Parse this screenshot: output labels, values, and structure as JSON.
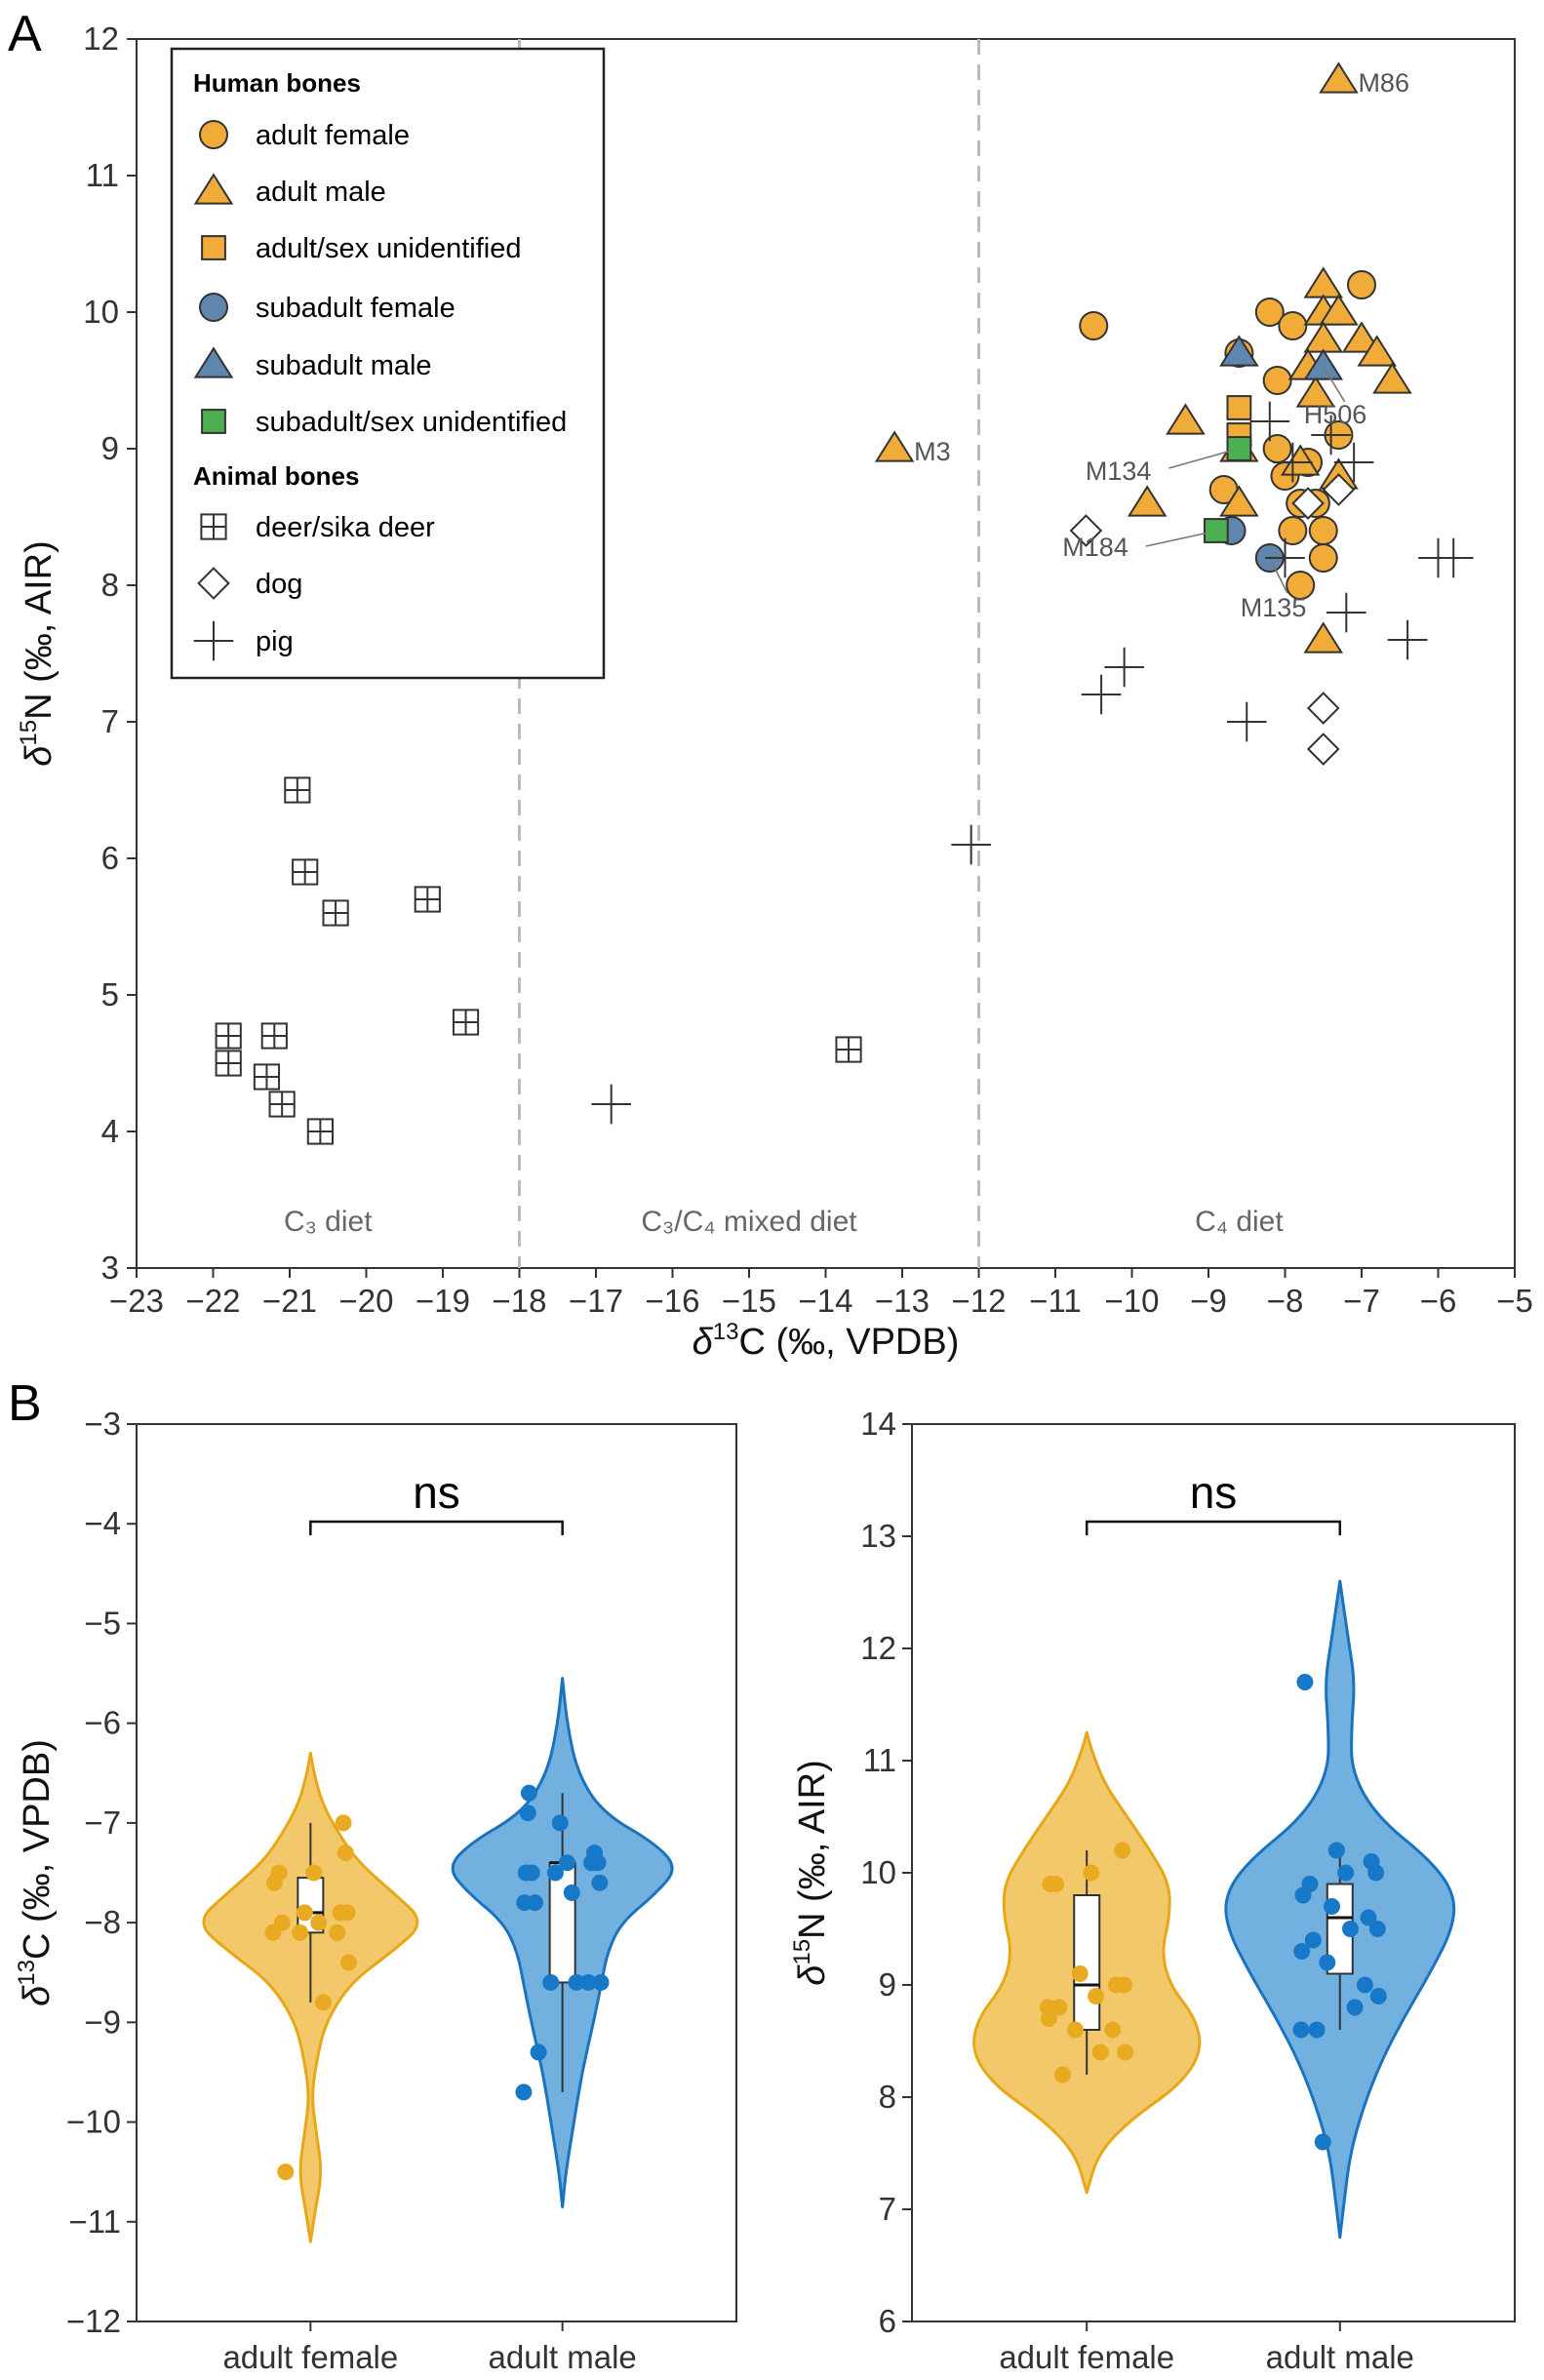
{
  "panels": {
    "a_letter": "A",
    "b_letter": "B"
  },
  "colors": {
    "orange": "#F0AB39",
    "steel_blue": "#5F86AD",
    "green": "#4CAF50",
    "violin_female": "#F2C86A",
    "violin_male": "#72B0E0",
    "line_female": "#E6A817",
    "line_male": "#1A73BF",
    "point_female": "#E8AA20",
    "point_male": "#1878C8"
  },
  "chart_data": [
    {
      "type": "scatter",
      "panel": "A",
      "xlabel": "δ13C (‰, VPDB)",
      "ylabel": "δ15N (‰, AIR)",
      "xlim": [
        -23,
        -5
      ],
      "ylim": [
        3,
        12
      ],
      "xticks": [
        -23,
        -22,
        -21,
        -20,
        -19,
        -18,
        -17,
        -16,
        -15,
        -14,
        -13,
        -12,
        -11,
        -10,
        -9,
        -8,
        -7,
        -6,
        -5
      ],
      "yticks": [
        3,
        4,
        5,
        6,
        7,
        8,
        9,
        10,
        11,
        12
      ],
      "xtick_labels": [
        "−23",
        "−22",
        "−21",
        "−20",
        "−19",
        "−18",
        "−17",
        "−16",
        "−15",
        "−14",
        "−13",
        "−12",
        "−11",
        "−10",
        "−9",
        "−8",
        "−7",
        "−6",
        "−5"
      ],
      "ytick_labels": [
        "3",
        "4",
        "5",
        "6",
        "7",
        "8",
        "9",
        "10",
        "11",
        "12"
      ],
      "vlines": [
        -18,
        -12
      ],
      "regions": [
        {
          "label": "C₃ diet",
          "x": -20.5
        },
        {
          "label": "C₃/C₄ mixed diet",
          "x": -15
        },
        {
          "label": "C₄ diet",
          "x": -8.6
        }
      ],
      "legend": {
        "position": "top-left",
        "human_title": "Human bones",
        "animal_title": "Animal bones",
        "entries": [
          {
            "label": "adult female",
            "marker": "circle",
            "color": "#F0AB39"
          },
          {
            "label": "adult male",
            "marker": "triangle",
            "color": "#F0AB39"
          },
          {
            "label": "adult/sex unidentified",
            "marker": "square",
            "color": "#F0AB39"
          },
          {
            "label": "subadult female",
            "marker": "circle",
            "color": "#5F86AD"
          },
          {
            "label": "subadult male",
            "marker": "triangle",
            "color": "#5F86AD"
          },
          {
            "label": "subadult/sex unidentified",
            "marker": "square",
            "color": "#4CAF50"
          },
          {
            "label": "deer/sika deer",
            "marker": "boxplus",
            "color": "none"
          },
          {
            "label": "dog",
            "marker": "diamond",
            "color": "none"
          },
          {
            "label": "pig",
            "marker": "plus",
            "color": "none"
          }
        ]
      },
      "series": [
        {
          "name": "adult female",
          "marker": "circle",
          "color": "#F0AB39",
          "points": [
            [
              -10.5,
              9.9
            ],
            [
              -8.6,
              9.7
            ],
            [
              -8.2,
              10.0
            ],
            [
              -7.9,
              9.9
            ],
            [
              -7,
              10.2
            ],
            [
              -8.1,
              9.5
            ],
            [
              -8.1,
              9.0
            ],
            [
              -8.0,
              8.8
            ],
            [
              -7.7,
              8.9
            ],
            [
              -7.3,
              9.1
            ],
            [
              -8.8,
              8.7
            ],
            [
              -7.8,
              8.6
            ],
            [
              -7.6,
              8.6
            ],
            [
              -7.9,
              8.4
            ],
            [
              -7.5,
              8.4
            ],
            [
              -7.5,
              8.2
            ],
            [
              -7.8,
              8.0
            ]
          ]
        },
        {
          "name": "adult male",
          "marker": "triangle",
          "color": "#F0AB39",
          "points": [
            [
              -7.3,
              11.7
            ],
            [
              -13.1,
              9.0
            ],
            [
              -9.3,
              9.2
            ],
            [
              -9.8,
              8.6
            ],
            [
              -8.6,
              8.6
            ],
            [
              -7.5,
              10.2
            ],
            [
              -7.5,
              10.0
            ],
            [
              -7.3,
              10.0
            ],
            [
              -7.5,
              9.8
            ],
            [
              -7.0,
              9.8
            ],
            [
              -6.8,
              9.7
            ],
            [
              -7.7,
              9.6
            ],
            [
              -6.6,
              9.5
            ],
            [
              -7.6,
              9.4
            ],
            [
              -8.6,
              9.0
            ],
            [
              -7.8,
              8.9
            ],
            [
              -7.3,
              8.8
            ],
            [
              -7.5,
              7.6
            ]
          ]
        },
        {
          "name": "adult/sex unidentified",
          "marker": "square",
          "color": "#F0AB39",
          "points": [
            [
              -8.6,
              9.3
            ],
            [
              -8.6,
              9.1
            ]
          ]
        },
        {
          "name": "subadult female",
          "marker": "circle",
          "color": "#5F86AD",
          "points": [
            [
              -8.2,
              8.2
            ],
            [
              -8.7,
              8.4
            ]
          ]
        },
        {
          "name": "subadult male",
          "marker": "triangle",
          "color": "#5F86AD",
          "points": [
            [
              -7.5,
              9.6
            ],
            [
              -8.6,
              9.7
            ]
          ]
        },
        {
          "name": "subadult/sex unidentified",
          "marker": "square",
          "color": "#4CAF50",
          "points": [
            [
              -8.6,
              9.0
            ],
            [
              -8.9,
              8.4
            ]
          ]
        },
        {
          "name": "deer/sika deer",
          "marker": "boxplus",
          "points": [
            [
              -20.9,
              6.5
            ],
            [
              -20.8,
              5.9
            ],
            [
              -20.4,
              5.6
            ],
            [
              -19.2,
              5.7
            ],
            [
              -18.7,
              4.8
            ],
            [
              -21.8,
              4.7
            ],
            [
              -21.2,
              4.7
            ],
            [
              -21.8,
              4.5
            ],
            [
              -21.3,
              4.4
            ],
            [
              -21.1,
              4.2
            ],
            [
              -20.6,
              4.0
            ],
            [
              -13.7,
              4.6
            ]
          ]
        },
        {
          "name": "dog",
          "marker": "diamond",
          "points": [
            [
              -10.6,
              8.4
            ],
            [
              -7.7,
              8.6
            ],
            [
              -7.3,
              8.7
            ],
            [
              -7.5,
              7.1
            ],
            [
              -7.5,
              6.8
            ]
          ]
        },
        {
          "name": "pig",
          "marker": "plus",
          "points": [
            [
              -16.8,
              4.2
            ],
            [
              -12.1,
              6.1
            ],
            [
              -10.4,
              7.2
            ],
            [
              -10.1,
              7.4
            ],
            [
              -8.5,
              7.0
            ],
            [
              -8.2,
              9.2
            ],
            [
              -7.9,
              8.9
            ],
            [
              -7.4,
              9.1
            ],
            [
              -7.1,
              8.9
            ],
            [
              -8.0,
              8.2
            ],
            [
              -7.2,
              7.8
            ],
            [
              -6.4,
              7.6
            ],
            [
              -6.0,
              8.2
            ],
            [
              -5.8,
              8.2
            ]
          ]
        }
      ],
      "annotations": [
        {
          "label": "M86",
          "x": -7.3,
          "y": 11.7
        },
        {
          "label": "M3",
          "x": -13.1,
          "y": 9.0
        },
        {
          "label": "H506",
          "x": -7.5,
          "y": 9.6
        },
        {
          "label": "M134",
          "x": -8.6,
          "y": 9.0
        },
        {
          "label": "M184",
          "x": -8.9,
          "y": 8.4
        },
        {
          "label": "M135",
          "x": -8.2,
          "y": 8.2
        }
      ]
    },
    {
      "type": "violin",
      "panel": "B-left",
      "ylabel": "δ13C (‰, VPDB)",
      "categories": [
        "adult female",
        "adult male"
      ],
      "ylim": [
        -12,
        -3
      ],
      "yticks": [
        -12,
        -11,
        -10,
        -9,
        -8,
        -7,
        -6,
        -5,
        -4,
        -3
      ],
      "ytick_labels": [
        "−12",
        "−11",
        "−10",
        "−9",
        "−8",
        "−7",
        "−6",
        "−5",
        "−4",
        "−3"
      ],
      "significance": "ns",
      "series": [
        {
          "name": "adult female",
          "values": [
            -7.0,
            -7.3,
            -7.5,
            -7.5,
            -7.6,
            -7.9,
            -7.9,
            -7.9,
            -8.0,
            -8.0,
            -8.1,
            -8.1,
            -8.1,
            -8.4,
            -8.8,
            -10.5
          ],
          "box": {
            "q1": -8.1,
            "median": -7.9,
            "q3": -7.55,
            "lower": -8.8,
            "upper": -7.0
          },
          "violin": [
            [
              -11.2,
              0
            ],
            [
              -10.9,
              0.04
            ],
            [
              -10.5,
              0.1
            ],
            [
              -10.1,
              0.05
            ],
            [
              -9.75,
              0.01
            ],
            [
              -9.4,
              0.05
            ],
            [
              -9.0,
              0.13
            ],
            [
              -8.6,
              0.35
            ],
            [
              -8.3,
              0.7
            ],
            [
              -8.0,
              1.0
            ],
            [
              -7.7,
              0.72
            ],
            [
              -7.4,
              0.42
            ],
            [
              -7.1,
              0.24
            ],
            [
              -6.8,
              0.1
            ],
            [
              -6.5,
              0.03
            ],
            [
              -6.3,
              0
            ]
          ]
        },
        {
          "name": "adult male",
          "values": [
            -6.7,
            -6.9,
            -7.0,
            -7.3,
            -7.4,
            -7.4,
            -7.5,
            -7.5,
            -7.5,
            -7.4,
            -7.6,
            -7.7,
            -7.8,
            -7.8,
            -8.6,
            -8.6,
            -8.6,
            -8.6,
            -9.3,
            -9.7
          ],
          "box": {
            "q1": -8.6,
            "median": -7.4,
            "q3": -7.4,
            "lower": -9.7,
            "upper": -6.7
          },
          "violin": [
            [
              -10.85,
              0
            ],
            [
              -10.5,
              0.03
            ],
            [
              -10.0,
              0.1
            ],
            [
              -9.5,
              0.17
            ],
            [
              -9.0,
              0.27
            ],
            [
              -8.6,
              0.34
            ],
            [
              -8.3,
              0.39
            ],
            [
              -8.0,
              0.51
            ],
            [
              -7.7,
              0.82
            ],
            [
              -7.45,
              1.0
            ],
            [
              -7.2,
              0.8
            ],
            [
              -6.9,
              0.35
            ],
            [
              -6.5,
              0.13
            ],
            [
              -6.0,
              0.04
            ],
            [
              -5.55,
              0
            ]
          ]
        }
      ]
    },
    {
      "type": "violin",
      "panel": "B-right",
      "ylabel": "δ15N (‰, AIR)",
      "categories": [
        "adult female",
        "adult male"
      ],
      "ylim": [
        6,
        14
      ],
      "yticks": [
        6,
        7,
        8,
        9,
        10,
        11,
        12,
        13,
        14
      ],
      "ytick_labels": [
        "6",
        "7",
        "8",
        "9",
        "10",
        "11",
        "12",
        "13",
        "14"
      ],
      "significance": "ns",
      "series": [
        {
          "name": "adult female",
          "values": [
            10.2,
            10.0,
            9.9,
            9.9,
            9.1,
            9.0,
            9.0,
            8.9,
            8.8,
            8.7,
            8.6,
            8.6,
            8.4,
            8.4,
            8.2,
            8.8
          ],
          "box": {
            "q1": 8.6,
            "median": 9.0,
            "q3": 9.8,
            "lower": 8.2,
            "upper": 10.2
          },
          "violin": [
            [
              7.15,
              0
            ],
            [
              7.5,
              0.1
            ],
            [
              7.8,
              0.38
            ],
            [
              8.1,
              0.8
            ],
            [
              8.4,
              1.0
            ],
            [
              8.7,
              0.95
            ],
            [
              9.0,
              0.72
            ],
            [
              9.3,
              0.65
            ],
            [
              9.6,
              0.72
            ],
            [
              9.9,
              0.72
            ],
            [
              10.2,
              0.55
            ],
            [
              10.5,
              0.35
            ],
            [
              10.8,
              0.15
            ],
            [
              11.1,
              0.04
            ],
            [
              11.25,
              0
            ]
          ]
        },
        {
          "name": "adult male",
          "values": [
            11.7,
            10.2,
            10.1,
            10.0,
            10.0,
            9.9,
            9.8,
            9.7,
            9.6,
            9.5,
            9.5,
            9.4,
            9.3,
            9.2,
            9.0,
            8.9,
            8.8,
            8.6,
            8.6,
            7.6
          ],
          "box": {
            "q1": 9.1,
            "median": 9.6,
            "q3": 9.9,
            "lower": 8.6,
            "upper": 10.2
          },
          "violin": [
            [
              6.75,
              0
            ],
            [
              7.1,
              0.04
            ],
            [
              7.5,
              0.09
            ],
            [
              7.9,
              0.2
            ],
            [
              8.3,
              0.35
            ],
            [
              8.7,
              0.55
            ],
            [
              9.1,
              0.78
            ],
            [
              9.5,
              0.98
            ],
            [
              9.8,
              1.0
            ],
            [
              10.1,
              0.8
            ],
            [
              10.5,
              0.32
            ],
            [
              10.9,
              0.1
            ],
            [
              11.3,
              0.1
            ],
            [
              11.7,
              0.13
            ],
            [
              12.1,
              0.07
            ],
            [
              12.6,
              0
            ]
          ]
        }
      ]
    }
  ]
}
